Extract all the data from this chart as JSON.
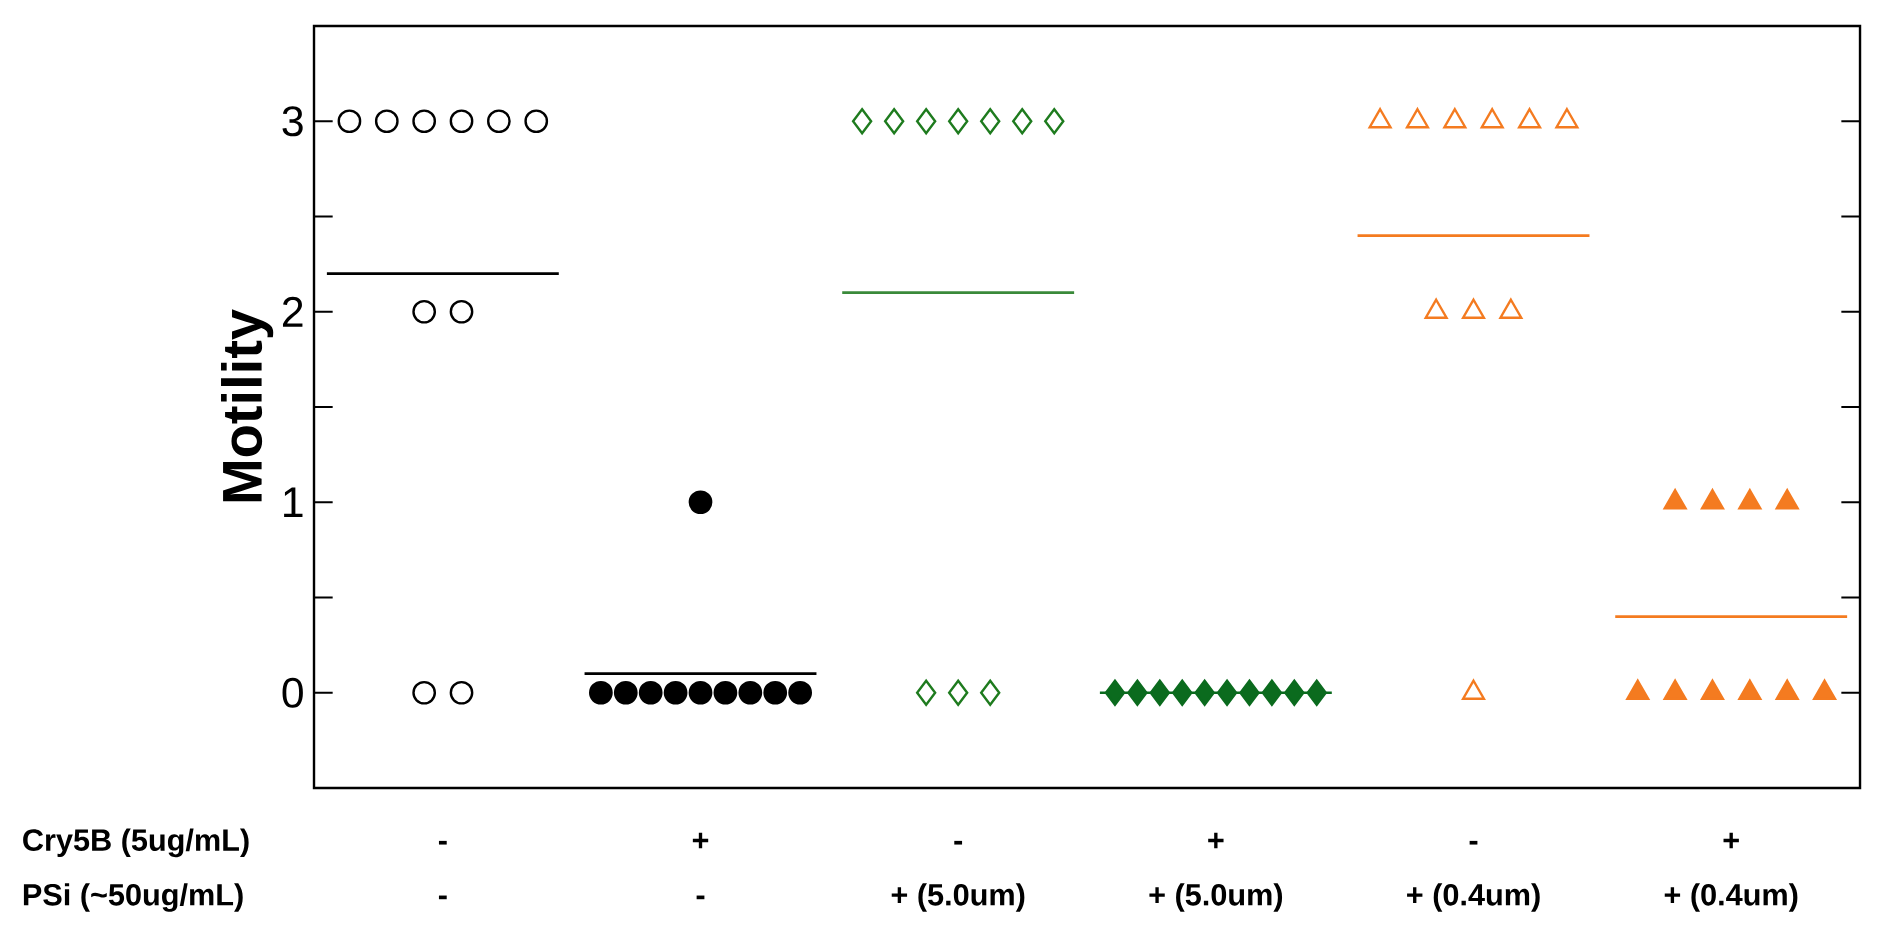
{
  "chart_data": {
    "type": "scatter",
    "ylabel": "Motility",
    "categories": [
      "-",
      "+",
      "-",
      "+",
      "-",
      "+"
    ],
    "ylim": [
      -0.5,
      3.5
    ],
    "yticks": [
      0,
      {
        "value": 0.5,
        "label": null
      },
      1,
      {
        "value": 1.5,
        "label": null
      },
      2,
      {
        "value": 2.5,
        "label": null
      },
      3
    ],
    "grid": false,
    "ref_lines": [
      {
        "axis": "y",
        "value": 2.2,
        "color": "#000000"
      },
      {
        "axis": "y",
        "value": 0.1,
        "color": "#000000"
      },
      {
        "axis": "y",
        "value": 2.1,
        "color": "#3a8a3a"
      },
      {
        "axis": "y",
        "value": 0,
        "color": "#0b6b1e"
      },
      {
        "axis": "y",
        "value": 2.4,
        "color": "#f47b20"
      },
      {
        "axis": "y",
        "value": 0.4,
        "color": "#f47b20"
      }
    ],
    "annotations": [
      "Cry5B (5ug/mL)",
      "PSi (~50ug/mL)",
      "-",
      "-",
      "+ (5.0um)",
      "+ (5.0um)",
      "+ (0.4um)",
      "+ (0.4um)"
    ],
    "series": [
      {
        "type": "scatter",
        "marker": "circle-open",
        "color": "#000000",
        "values": [
          3,
          null,
          null,
          null,
          null,
          null
        ]
      },
      {
        "type": "scatter",
        "marker": "circle-open",
        "color": "#000000",
        "values": [
          3,
          null,
          null,
          null,
          null,
          null
        ]
      },
      {
        "type": "scatter",
        "marker": "circle-open",
        "color": "#000000",
        "values": [
          3,
          null,
          null,
          null,
          null,
          null
        ]
      },
      {
        "type": "scatter",
        "marker": "circle-open",
        "color": "#000000",
        "values": [
          3,
          null,
          null,
          null,
          null,
          null
        ]
      },
      {
        "type": "scatter",
        "marker": "circle-open",
        "color": "#000000",
        "values": [
          3,
          null,
          null,
          null,
          null,
          null
        ]
      },
      {
        "type": "scatter",
        "marker": "circle-open",
        "color": "#000000",
        "values": [
          3,
          null,
          null,
          null,
          null,
          null
        ]
      },
      {
        "type": "scatter",
        "marker": "circle-open",
        "color": "#000000",
        "values": [
          2,
          null,
          null,
          null,
          null,
          null
        ]
      },
      {
        "type": "scatter",
        "marker": "circle-open",
        "color": "#000000",
        "values": [
          2,
          null,
          null,
          null,
          null,
          null
        ]
      },
      {
        "type": "scatter",
        "marker": "circle-open",
        "color": "#000000",
        "values": [
          0,
          null,
          null,
          null,
          null,
          null
        ]
      },
      {
        "type": "scatter",
        "marker": "circle-open",
        "color": "#000000",
        "values": [
          0,
          null,
          null,
          null,
          null,
          null
        ]
      },
      {
        "type": "scatter",
        "marker": "circle",
        "color": "#000000",
        "values": [
          null,
          1,
          null,
          null,
          null,
          null
        ]
      },
      {
        "type": "scatter",
        "marker": "circle",
        "color": "#000000",
        "values": [
          null,
          0,
          null,
          null,
          null,
          null
        ]
      },
      {
        "type": "scatter",
        "marker": "circle",
        "color": "#000000",
        "values": [
          null,
          0,
          null,
          null,
          null,
          null
        ]
      },
      {
        "type": "scatter",
        "marker": "circle",
        "color": "#000000",
        "values": [
          null,
          0,
          null,
          null,
          null,
          null
        ]
      },
      {
        "type": "scatter",
        "marker": "circle",
        "color": "#000000",
        "values": [
          null,
          0,
          null,
          null,
          null,
          null
        ]
      },
      {
        "type": "scatter",
        "marker": "circle",
        "color": "#000000",
        "values": [
          null,
          0,
          null,
          null,
          null,
          null
        ]
      },
      {
        "type": "scatter",
        "marker": "circle",
        "color": "#000000",
        "values": [
          null,
          0,
          null,
          null,
          null,
          null
        ]
      },
      {
        "type": "scatter",
        "marker": "circle",
        "color": "#000000",
        "values": [
          null,
          0,
          null,
          null,
          null,
          null
        ]
      },
      {
        "type": "scatter",
        "marker": "circle",
        "color": "#000000",
        "values": [
          null,
          0,
          null,
          null,
          null,
          null
        ]
      },
      {
        "type": "scatter",
        "marker": "circle",
        "color": "#000000",
        "values": [
          null,
          0,
          null,
          null,
          null,
          null
        ]
      },
      {
        "type": "scatter",
        "marker": "diamond-open",
        "color": "#1e7b1e",
        "values": [
          null,
          null,
          3,
          null,
          null,
          null
        ]
      },
      {
        "type": "scatter",
        "marker": "diamond-open",
        "color": "#1e7b1e",
        "values": [
          null,
          null,
          3,
          null,
          null,
          null
        ]
      },
      {
        "type": "scatter",
        "marker": "diamond-open",
        "color": "#1e7b1e",
        "values": [
          null,
          null,
          3,
          null,
          null,
          null
        ]
      },
      {
        "type": "scatter",
        "marker": "diamond-open",
        "color": "#1e7b1e",
        "values": [
          null,
          null,
          3,
          null,
          null,
          null
        ]
      },
      {
        "type": "scatter",
        "marker": "diamond-open",
        "color": "#1e7b1e",
        "values": [
          null,
          null,
          3,
          null,
          null,
          null
        ]
      },
      {
        "type": "scatter",
        "marker": "diamond-open",
        "color": "#1e7b1e",
        "values": [
          null,
          null,
          3,
          null,
          null,
          null
        ]
      },
      {
        "type": "scatter",
        "marker": "diamond-open",
        "color": "#1e7b1e",
        "values": [
          null,
          null,
          3,
          null,
          null,
          null
        ]
      },
      {
        "type": "scatter",
        "marker": "diamond-open",
        "color": "#1e7b1e",
        "values": [
          null,
          null,
          0,
          null,
          null,
          null
        ]
      },
      {
        "type": "scatter",
        "marker": "diamond-open",
        "color": "#1e7b1e",
        "values": [
          null,
          null,
          0,
          null,
          null,
          null
        ]
      },
      {
        "type": "scatter",
        "marker": "diamond-open",
        "color": "#1e7b1e",
        "values": [
          null,
          null,
          0,
          null,
          null,
          null
        ]
      },
      {
        "type": "scatter",
        "marker": "diamond",
        "color": "#0b6b1e",
        "values": [
          null,
          null,
          null,
          0,
          null,
          null
        ]
      },
      {
        "type": "scatter",
        "marker": "diamond",
        "color": "#0b6b1e",
        "values": [
          null,
          null,
          null,
          0,
          null,
          null
        ]
      },
      {
        "type": "scatter",
        "marker": "diamond",
        "color": "#0b6b1e",
        "values": [
          null,
          null,
          null,
          0,
          null,
          null
        ]
      },
      {
        "type": "scatter",
        "marker": "diamond",
        "color": "#0b6b1e",
        "values": [
          null,
          null,
          null,
          0,
          null,
          null
        ]
      },
      {
        "type": "scatter",
        "marker": "diamond",
        "color": "#0b6b1e",
        "values": [
          null,
          null,
          null,
          0,
          null,
          null
        ]
      },
      {
        "type": "scatter",
        "marker": "diamond",
        "color": "#0b6b1e",
        "values": [
          null,
          null,
          null,
          0,
          null,
          null
        ]
      },
      {
        "type": "scatter",
        "marker": "diamond",
        "color": "#0b6b1e",
        "values": [
          null,
          null,
          null,
          0,
          null,
          null
        ]
      },
      {
        "type": "scatter",
        "marker": "diamond",
        "color": "#0b6b1e",
        "values": [
          null,
          null,
          null,
          0,
          null,
          null
        ]
      },
      {
        "type": "scatter",
        "marker": "diamond",
        "color": "#0b6b1e",
        "values": [
          null,
          null,
          null,
          0,
          null,
          null
        ]
      },
      {
        "type": "scatter",
        "marker": "diamond",
        "color": "#0b6b1e",
        "values": [
          null,
          null,
          null,
          0,
          null,
          null
        ]
      },
      {
        "type": "scatter",
        "marker": "triangle-open",
        "color": "#f47b20",
        "values": [
          null,
          null,
          null,
          null,
          3,
          null
        ]
      },
      {
        "type": "scatter",
        "marker": "triangle-open",
        "color": "#f47b20",
        "values": [
          null,
          null,
          null,
          null,
          3,
          null
        ]
      },
      {
        "type": "scatter",
        "marker": "triangle-open",
        "color": "#f47b20",
        "values": [
          null,
          null,
          null,
          null,
          3,
          null
        ]
      },
      {
        "type": "scatter",
        "marker": "triangle-open",
        "color": "#f47b20",
        "values": [
          null,
          null,
          null,
          null,
          3,
          null
        ]
      },
      {
        "type": "scatter",
        "marker": "triangle-open",
        "color": "#f47b20",
        "values": [
          null,
          null,
          null,
          null,
          3,
          null
        ]
      },
      {
        "type": "scatter",
        "marker": "triangle-open",
        "color": "#f47b20",
        "values": [
          null,
          null,
          null,
          null,
          3,
          null
        ]
      },
      {
        "type": "scatter",
        "marker": "triangle-open",
        "color": "#f47b20",
        "values": [
          null,
          null,
          null,
          null,
          2,
          null
        ]
      },
      {
        "type": "scatter",
        "marker": "triangle-open",
        "color": "#f47b20",
        "values": [
          null,
          null,
          null,
          null,
          2,
          null
        ]
      },
      {
        "type": "scatter",
        "marker": "triangle-open",
        "color": "#f47b20",
        "values": [
          null,
          null,
          null,
          null,
          2,
          null
        ]
      },
      {
        "type": "scatter",
        "marker": "triangle-open",
        "color": "#f47b20",
        "values": [
          null,
          null,
          null,
          null,
          0,
          null
        ]
      },
      {
        "type": "scatter",
        "marker": "triangle",
        "color": "#f47b20",
        "values": [
          null,
          null,
          null,
          null,
          null,
          1
        ]
      },
      {
        "type": "scatter",
        "marker": "triangle",
        "color": "#f47b20",
        "values": [
          null,
          null,
          null,
          null,
          null,
          1
        ]
      },
      {
        "type": "scatter",
        "marker": "triangle",
        "color": "#f47b20",
        "values": [
          null,
          null,
          null,
          null,
          null,
          1
        ]
      },
      {
        "type": "scatter",
        "marker": "triangle",
        "color": "#f47b20",
        "values": [
          null,
          null,
          null,
          null,
          null,
          1
        ]
      },
      {
        "type": "scatter",
        "marker": "triangle",
        "color": "#f47b20",
        "values": [
          null,
          null,
          null,
          null,
          null,
          0
        ]
      },
      {
        "type": "scatter",
        "marker": "triangle",
        "color": "#f47b20",
        "values": [
          null,
          null,
          null,
          null,
          null,
          0
        ]
      },
      {
        "type": "scatter",
        "marker": "triangle",
        "color": "#f47b20",
        "values": [
          null,
          null,
          null,
          null,
          null,
          0
        ]
      },
      {
        "type": "scatter",
        "marker": "triangle",
        "color": "#f47b20",
        "values": [
          null,
          null,
          null,
          null,
          null,
          0
        ]
      },
      {
        "type": "scatter",
        "marker": "triangle",
        "color": "#f47b20",
        "values": [
          null,
          null,
          null,
          null,
          null,
          0
        ]
      },
      {
        "type": "scatter",
        "marker": "triangle",
        "color": "#f47b20",
        "values": [
          null,
          null,
          null,
          null,
          null,
          0
        ]
      }
    ]
  }
}
